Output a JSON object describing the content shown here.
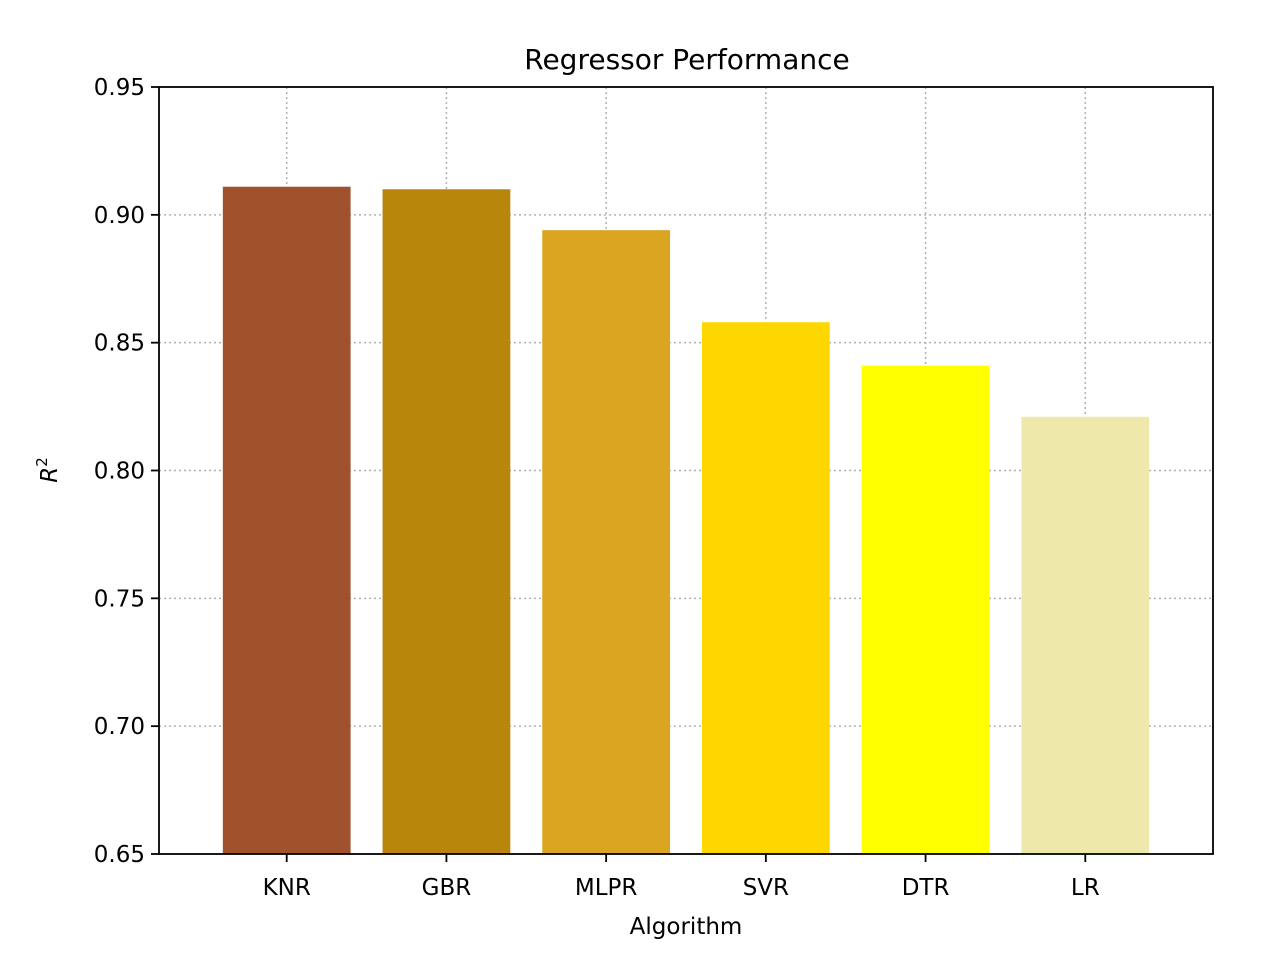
{
  "chart_data": {
    "type": "bar",
    "title": "Regressor Performance",
    "xlabel": "Algorithm",
    "ylabel": "R",
    "ylabel_sup": "2",
    "categories": [
      "KNR",
      "GBR",
      "MLPR",
      "SVR",
      "DTR",
      "LR"
    ],
    "values": [
      0.911,
      0.91,
      0.894,
      0.858,
      0.841,
      0.821
    ],
    "colors": [
      "#a0522d",
      "#b8860b",
      "#daa520",
      "#ffd700",
      "#ffff00",
      "#eee8aa"
    ],
    "ylim": [
      0.65,
      0.95
    ],
    "yticks": [
      "0.65",
      "0.70",
      "0.75",
      "0.80",
      "0.85",
      "0.90",
      "0.95"
    ],
    "grid": true,
    "legend": "none"
  }
}
